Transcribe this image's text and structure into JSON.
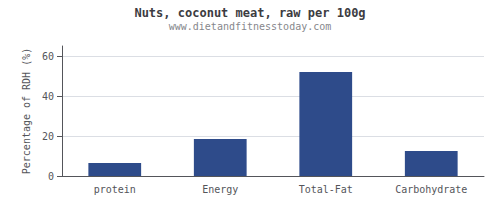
{
  "chart_data": {
    "type": "bar",
    "title": "Nuts, coconut meat, raw per 100g",
    "subtitle": "www.dietandfitnesstoday.com",
    "categories": [
      "protein",
      "Energy",
      "Total-Fat",
      "Carbohydrate"
    ],
    "values": [
      6.5,
      18.5,
      52,
      12.5
    ],
    "color": "#2e4b8a",
    "ylabel": "Percentage of RDH (%)",
    "ylim": [
      0,
      65
    ],
    "yticks": [
      0,
      20,
      40,
      60
    ],
    "grid": true
  }
}
